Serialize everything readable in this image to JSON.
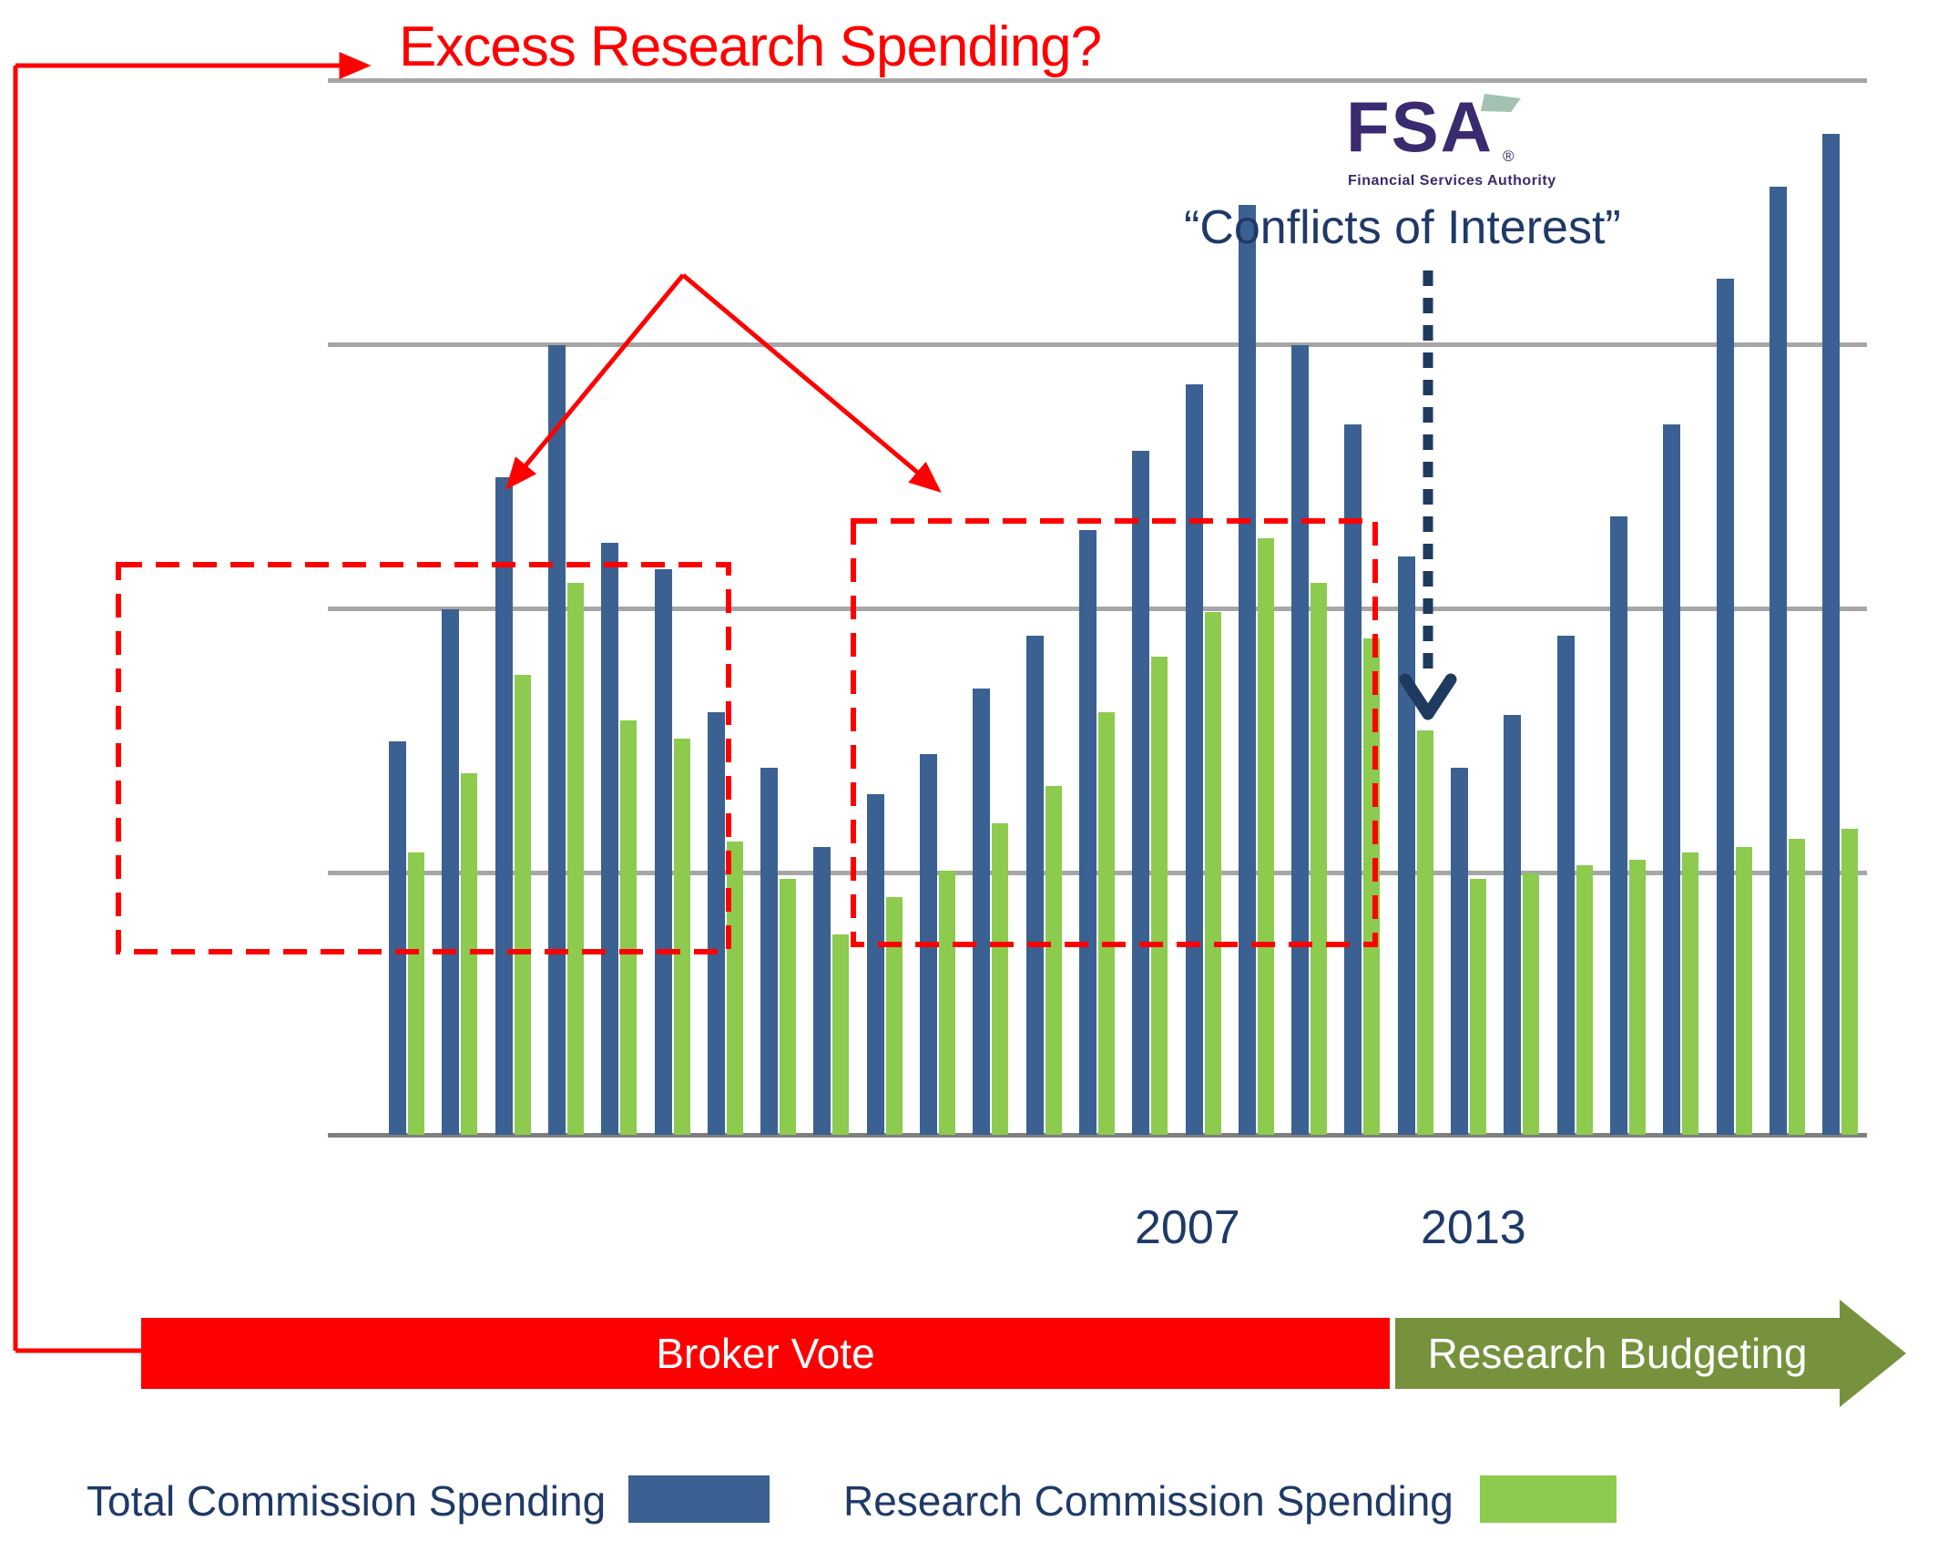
{
  "title": "Excess Research Spending?",
  "fsa_logo": {
    "acronym": "FSA",
    "registered_mark": "®",
    "subtitle": "Financial Services Authority"
  },
  "quote": "“Conflicts of Interest”",
  "banners": {
    "broker_vote_label": "Broker Vote",
    "research_budgeting_label": "Research Budgeting"
  },
  "legend": {
    "total_label": "Total Commission Spending",
    "research_label": "Research Commission Spending"
  },
  "colors": {
    "total_bar": "#3A6191",
    "research_bar": "#8CCB4E",
    "gridline": "#A6A6A6",
    "axis_line": "#7F7F7F",
    "annotation_red": "#FF0000",
    "navy_text": "#1F3A68",
    "navy_arrow": "#1E3A5F",
    "fsa_purple": "#3A2A70",
    "fsa_flag_teal": "#A3C2B2",
    "broker_banner": "#FF0000",
    "research_banner": "#76923C"
  },
  "chart_data": {
    "type": "bar",
    "title": "Excess Research Spending?",
    "n_pairs": 28,
    "x_tick_labels": [
      {
        "label": "2007",
        "pair_index": 15
      },
      {
        "label": "2013",
        "pair_index": 20
      }
    ],
    "series": [
      {
        "name": "Total Commission Spending",
        "color": "#3A6191",
        "values": [
          1.49,
          1.99,
          2.49,
          2.99,
          2.24,
          2.14,
          1.6,
          1.39,
          1.09,
          1.29,
          1.44,
          1.69,
          1.89,
          2.29,
          2.59,
          2.84,
          3.52,
          2.99,
          2.69,
          2.19,
          1.39,
          1.59,
          1.89,
          2.34,
          2.69,
          3.24,
          3.59,
          3.79
        ]
      },
      {
        "name": "Research Commission Spending",
        "color": "#8CCB4E",
        "values": [
          1.07,
          1.37,
          1.74,
          2.09,
          1.57,
          1.5,
          1.11,
          0.97,
          0.76,
          0.9,
          1.0,
          1.18,
          1.32,
          1.6,
          1.81,
          1.98,
          2.26,
          2.09,
          1.88,
          1.53,
          0.97,
          0.99,
          1.02,
          1.04,
          1.07,
          1.09,
          1.12,
          1.16
        ]
      }
    ],
    "xlabel": "",
    "ylabel": "",
    "ylim": [
      0,
      4
    ],
    "y_axis_labeled": false,
    "y_unit": "gridline intervals (axis unlabeled)",
    "gridlines": true,
    "legend_position": "bottom"
  }
}
